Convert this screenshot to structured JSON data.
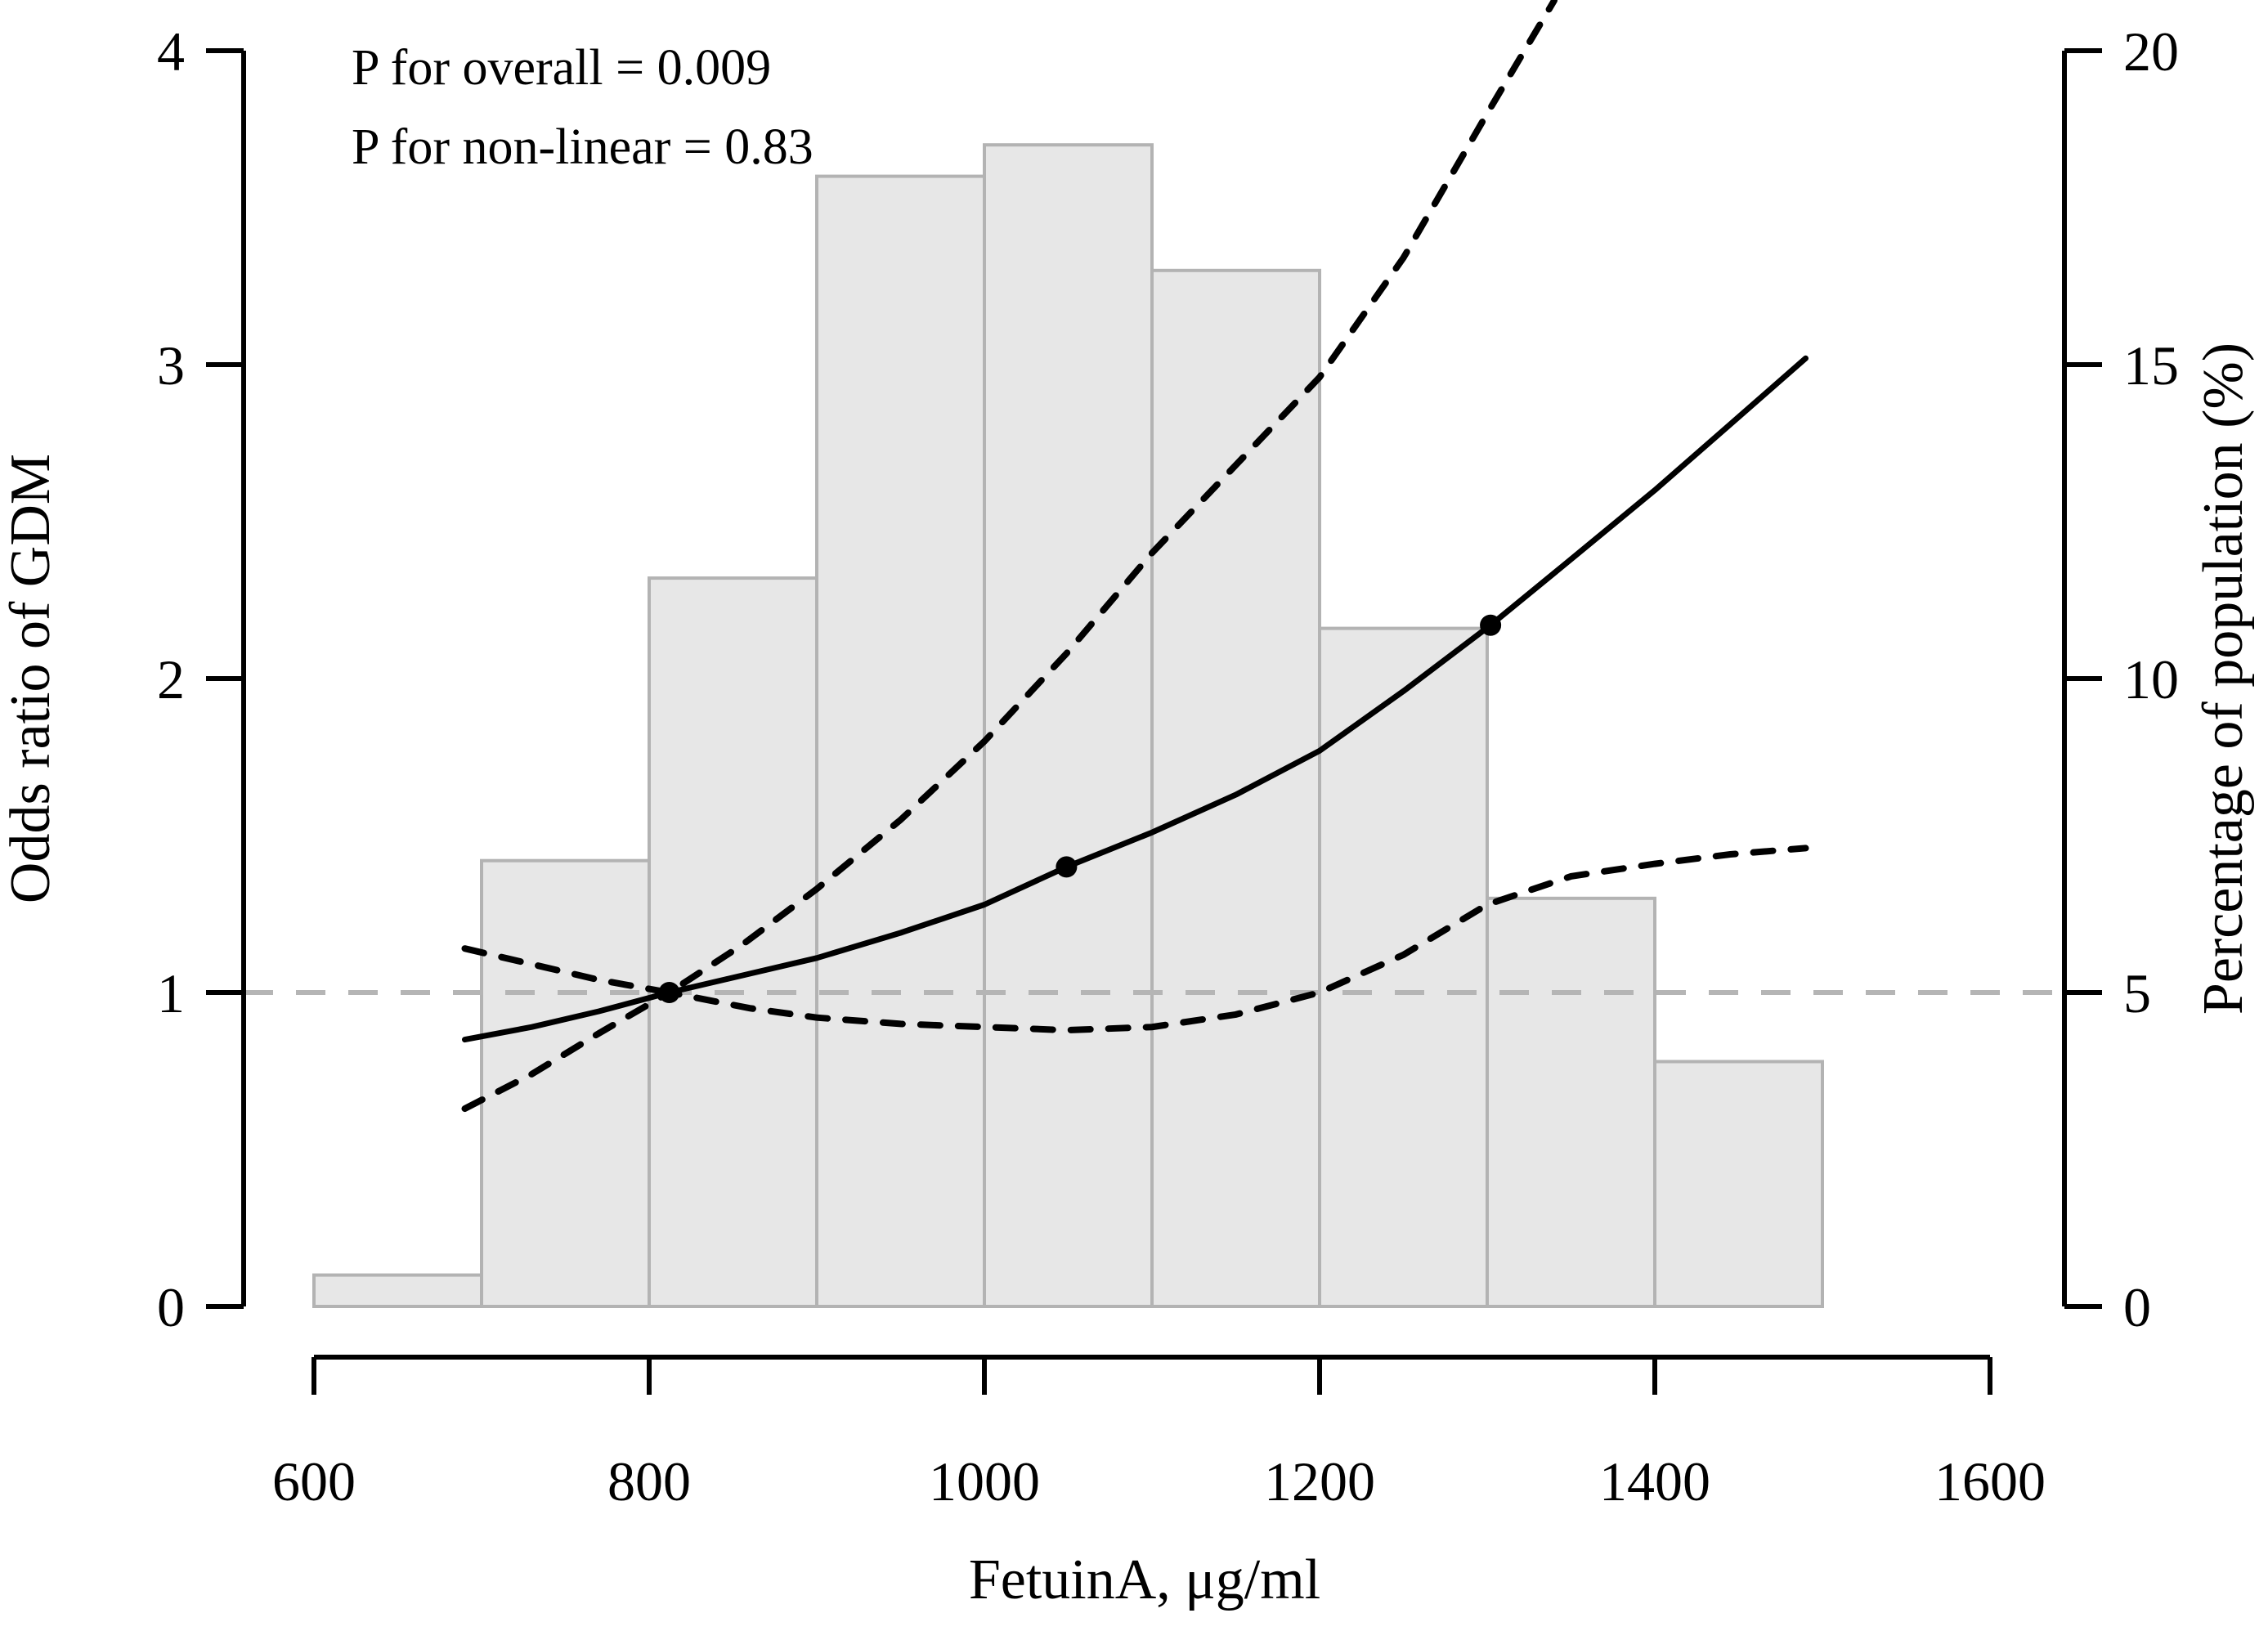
{
  "figure": {
    "annotation_line1": "P for overall = 0.009",
    "annotation_line2": "P for non-linear = 0.83"
  },
  "axes": {
    "x": {
      "label": "FetuinA, μg/ml",
      "ticks": [
        600,
        800,
        1000,
        1200,
        1400,
        1600
      ],
      "range": [
        600,
        1600
      ]
    },
    "y_left": {
      "label": "Odds ratio of GDM",
      "ticks": [
        0,
        1,
        2,
        3,
        4
      ],
      "range": [
        0,
        4
      ]
    },
    "y_right": {
      "label": "Percentage of population (%)",
      "ticks": [
        0,
        5,
        10,
        15,
        20
      ],
      "range": [
        0,
        20
      ]
    }
  },
  "colors": {
    "curve": "#000000",
    "ci_dashed": "#000000",
    "reference_line": "#b5b5b5",
    "bar_fill": "#e7e7e7",
    "bar_border": "#b3b3b3",
    "text": "#000000"
  },
  "chart_data": {
    "type": "line",
    "title": "",
    "xlabel": "FetuinA, μg/ml",
    "ylabel_left": "Odds ratio of GDM",
    "ylabel_right": "Percentage of population (%)",
    "x_range": [
      600,
      1600
    ],
    "y_left_range": [
      0,
      4
    ],
    "y_right_range": [
      0,
      20
    ],
    "grid": false,
    "annotations": [
      "P for overall = 0.009",
      "P for non-linear = 0.83"
    ],
    "reference_odds_ratio": 1,
    "histogram": {
      "series_name": "Percentage of population (%)",
      "bin_edges": [
        600,
        700,
        800,
        900,
        1000,
        1100,
        1200,
        1300,
        1400,
        1500
      ],
      "percent": [
        0.5,
        7.1,
        11.6,
        18.0,
        18.5,
        16.5,
        10.8,
        6.5,
        3.9
      ]
    },
    "odds_ratio_curve": {
      "series_name": "Odds ratio of GDM (solid)",
      "x": [
        690,
        730,
        770,
        812,
        860,
        900,
        950,
        1000,
        1049,
        1100,
        1150,
        1200,
        1250,
        1302,
        1350,
        1400,
        1445,
        1490
      ],
      "or": [
        0.85,
        0.89,
        0.94,
        1.0,
        1.06,
        1.11,
        1.19,
        1.28,
        1.4,
        1.51,
        1.63,
        1.77,
        1.96,
        2.17,
        2.38,
        2.6,
        2.81,
        3.02
      ]
    },
    "ci_upper": {
      "series_name": "Upper 95% CI (dashed)",
      "x": [
        690,
        730,
        770,
        812,
        855,
        900,
        950,
        1000,
        1049,
        1100,
        1150,
        1200,
        1250,
        1300,
        1340
      ],
      "or": [
        1.14,
        1.09,
        1.04,
        1.0,
        1.15,
        1.33,
        1.55,
        1.8,
        2.08,
        2.4,
        2.68,
        2.96,
        3.34,
        3.8,
        4.16
      ]
    },
    "ci_lower": {
      "series_name": "Lower 95% CI (dashed)",
      "x": [
        690,
        730,
        770,
        812,
        860,
        900,
        950,
        1000,
        1049,
        1100,
        1150,
        1200,
        1250,
        1300,
        1350,
        1400,
        1445,
        1490
      ],
      "or": [
        0.63,
        0.74,
        0.87,
        1.0,
        0.95,
        0.92,
        0.9,
        0.89,
        0.88,
        0.89,
        0.93,
        1.0,
        1.12,
        1.28,
        1.37,
        1.41,
        1.44,
        1.46
      ]
    },
    "knot_points": [
      {
        "x": 812,
        "or": 1.0
      },
      {
        "x": 1049,
        "or": 1.4
      },
      {
        "x": 1302,
        "or": 2.17
      }
    ]
  }
}
